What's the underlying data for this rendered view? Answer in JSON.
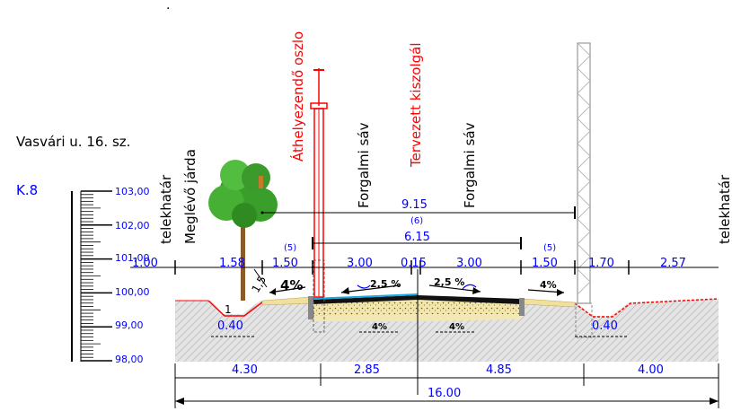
{
  "header": {
    "address": "Vasvári u. 16. sz.",
    "section_id": "K.8"
  },
  "vertical_labels": {
    "boundary_left": "telekhatár",
    "sidewalk": "Meglévő járda",
    "pole_relocate": "Áthelyezendő oszlo",
    "lane_left": "Forgalmi sáv",
    "service_planned": "Tervezett kiszolgál",
    "lane_right": "Forgalmi sáv",
    "boundary_right": "telekhatár"
  },
  "scale": {
    "ticks": [
      "103,00",
      "102,00",
      "101,00",
      "100,00",
      "99,00",
      "98,00"
    ]
  },
  "dims_top": {
    "span_a": "9.15",
    "span_a_paren": "(6)",
    "span_b": "6.15",
    "seg": [
      "1.00",
      "1.58",
      "1.50",
      "3.00",
      "0.15",
      "3.00",
      "1.50",
      "1.70",
      "2.57"
    ],
    "paren_left": "(5)",
    "paren_right": "(5)"
  },
  "slopes": {
    "left_sidewalk": "4%",
    "left_lane": "2,5 %",
    "right_lane": "2,5 %",
    "right_sidewalk": "4%",
    "subgrade_left": "4%",
    "subgrade_right": "4%",
    "ratio_a": "1",
    "ratio_b": "1,5"
  },
  "ditch": {
    "left": "0.40",
    "right": "0.40"
  },
  "dims_bottom": {
    "seg": [
      "4.30",
      "2.85",
      "4.85",
      "4.00"
    ],
    "total": "16.00"
  },
  "colors": {
    "dimension_blue": "#0000ff",
    "red_label": "#ff0000",
    "ground": "#d8d8d8",
    "sidewalk_fill": "#f0e0a0",
    "asphalt": "#000000",
    "tree_green": "#3a9e2a"
  }
}
